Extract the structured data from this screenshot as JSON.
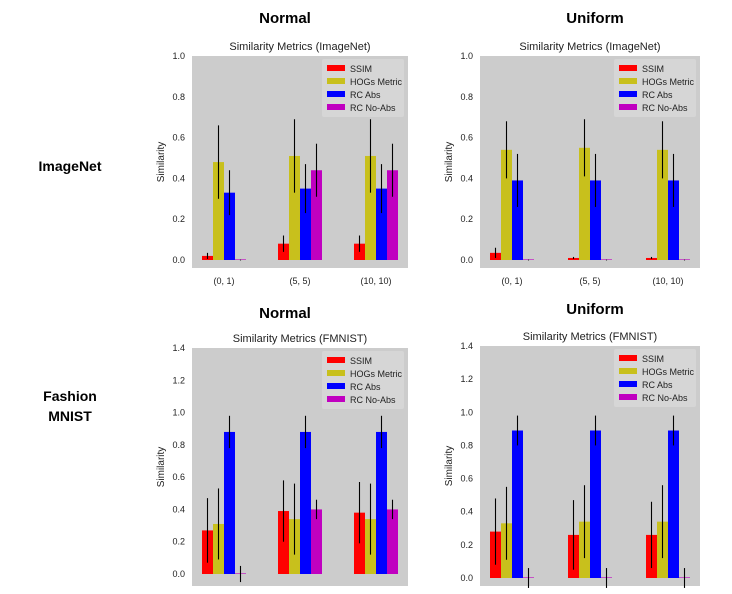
{
  "column_headers": [
    "Normal",
    "Uniform",
    "Normal",
    "Uniform"
  ],
  "row_labels": [
    "ImageNet",
    "Fashion\nMNIST"
  ],
  "colors": {
    "SSIM": "#ff0000",
    "HOGs Metric": "#c8c01c",
    "RC Abs": "#0000ff",
    "RC No-Abs": "#c000c0",
    "panel_bg": "#cccccc",
    "error_bar": "#000000"
  },
  "chart_data": [
    {
      "type": "bar",
      "title": "Similarity Metrics (ImageNet)",
      "ylabel": "Similarity",
      "xlabel": "",
      "categories": [
        "(0, 1)",
        "(5, 5)",
        "(10, 10)"
      ],
      "ylim": [
        0,
        1.0
      ],
      "yticks": [
        0.0,
        0.2,
        0.4,
        0.6,
        0.8,
        1.0
      ],
      "legend_position": "top-right",
      "series": [
        {
          "name": "SSIM",
          "values": [
            0.02,
            0.08,
            0.08
          ],
          "errors": [
            0.015,
            0.04,
            0.04
          ]
        },
        {
          "name": "HOGs Metric",
          "values": [
            0.48,
            0.51,
            0.51
          ],
          "errors": [
            0.18,
            0.18,
            0.18
          ]
        },
        {
          "name": "RC Abs",
          "values": [
            0.33,
            0.35,
            0.35
          ],
          "errors": [
            0.11,
            0.12,
            0.12
          ]
        },
        {
          "name": "RC No-Abs",
          "values": [
            0.0,
            0.44,
            0.44
          ],
          "errors": [
            0.002,
            0.13,
            0.13
          ]
        }
      ]
    },
    {
      "type": "bar",
      "title": "Similarity Metrics (ImageNet)",
      "ylabel": "Similarity",
      "xlabel": "",
      "categories": [
        "(0, 1)",
        "(5, 5)",
        "(10, 10)"
      ],
      "ylim": [
        0,
        1.0
      ],
      "yticks": [
        0.0,
        0.2,
        0.4,
        0.6,
        0.8,
        1.0
      ],
      "legend_position": "top-right",
      "series": [
        {
          "name": "SSIM",
          "values": [
            0.035,
            0.01,
            0.01
          ],
          "errors": [
            0.025,
            0.005,
            0.005
          ]
        },
        {
          "name": "HOGs Metric",
          "values": [
            0.54,
            0.55,
            0.54
          ],
          "errors": [
            0.14,
            0.14,
            0.14
          ]
        },
        {
          "name": "RC Abs",
          "values": [
            0.39,
            0.39,
            0.39
          ],
          "errors": [
            0.13,
            0.13,
            0.13
          ]
        },
        {
          "name": "RC No-Abs",
          "values": [
            0.0,
            0.0,
            0.0
          ],
          "errors": [
            0.002,
            0.002,
            0.002
          ]
        }
      ]
    },
    {
      "type": "bar",
      "title": "Similarity Metrics (FMNIST)",
      "ylabel": "Similarity",
      "xlabel": "",
      "categories": [
        "(0, 1)",
        "(5, 5)",
        "(10, 10)"
      ],
      "ylim": [
        0,
        1.4
      ],
      "yticks": [
        0.0,
        0.2,
        0.4,
        0.6,
        0.8,
        1.0,
        1.2,
        1.4
      ],
      "legend_position": "top-right",
      "series": [
        {
          "name": "SSIM",
          "values": [
            0.27,
            0.39,
            0.38
          ],
          "errors": [
            0.2,
            0.19,
            0.19
          ]
        },
        {
          "name": "HOGs Metric",
          "values": [
            0.31,
            0.34,
            0.34
          ],
          "errors": [
            0.22,
            0.22,
            0.22
          ]
        },
        {
          "name": "RC Abs",
          "values": [
            0.88,
            0.88,
            0.88
          ],
          "errors": [
            0.1,
            0.1,
            0.1
          ]
        },
        {
          "name": "RC No-Abs",
          "values": [
            0.0,
            0.4,
            0.4
          ],
          "errors": [
            0.05,
            0.06,
            0.06
          ]
        }
      ]
    },
    {
      "type": "bar",
      "title": "Similarity Metrics (FMNIST)",
      "ylabel": "Similarity",
      "xlabel": "",
      "categories": [
        "(0, 1)",
        "(5, 5)",
        "(10, 10)"
      ],
      "ylim": [
        0,
        1.4
      ],
      "yticks": [
        0.0,
        0.2,
        0.4,
        0.6,
        0.8,
        1.0,
        1.2,
        1.4
      ],
      "legend_position": "top-right",
      "series": [
        {
          "name": "SSIM",
          "values": [
            0.28,
            0.26,
            0.26
          ],
          "errors": [
            0.2,
            0.21,
            0.2
          ]
        },
        {
          "name": "HOGs Metric",
          "values": [
            0.33,
            0.34,
            0.34
          ],
          "errors": [
            0.22,
            0.22,
            0.22
          ]
        },
        {
          "name": "RC Abs",
          "values": [
            0.89,
            0.89,
            0.89
          ],
          "errors": [
            0.09,
            0.09,
            0.09
          ]
        },
        {
          "name": "RC No-Abs",
          "values": [
            0.0,
            0.0,
            0.0
          ],
          "errors": [
            0.06,
            0.06,
            0.06
          ]
        }
      ]
    }
  ]
}
